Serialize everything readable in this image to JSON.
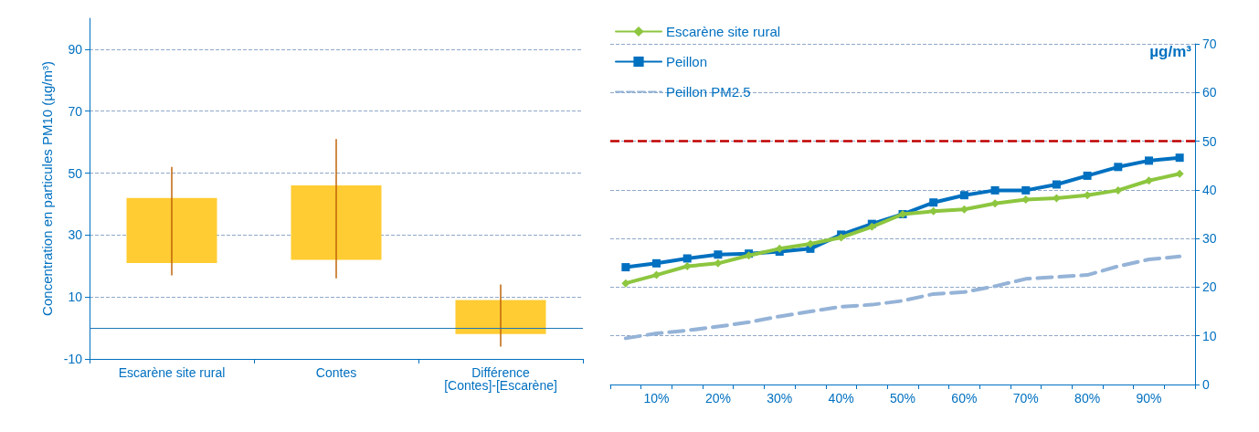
{
  "chart_data": [
    {
      "type": "bar",
      "ylabel": "Concentration en particules PM10 (µg/m³)",
      "categories": [
        "Escarène site rural",
        "Contes",
        "Différence\n[Contes]-[Escarène]"
      ],
      "base": [
        21,
        22,
        -2
      ],
      "values": [
        21,
        24,
        11
      ],
      "errors": [
        [
          17,
          52
        ],
        [
          16,
          61
        ],
        [
          -6,
          14
        ]
      ],
      "color": "#ffcc33",
      "ylim": [
        -10,
        100
      ],
      "yticks": [
        -10,
        10,
        30,
        50,
        70,
        90
      ],
      "grid": "y",
      "ref_lines": [
        {
          "axis": "y",
          "value": 0,
          "color": "#1f77b4"
        }
      ]
    },
    {
      "type": "line",
      "categories": [
        null,
        "10%",
        null,
        "20%",
        null,
        "30%",
        null,
        "40%",
        null,
        "50%",
        null,
        "60%",
        null,
        "70%",
        null,
        "80%",
        null,
        "90%",
        null
      ],
      "series": [
        {
          "name": "Escarène site rural",
          "color": "#8dc63f",
          "marker": "diamond",
          "line_style": "solid",
          "values": [
            20.8,
            22.5,
            24.3,
            24.9,
            26.5,
            27.9,
            28.9,
            30.2,
            32.4,
            35,
            35.6,
            36,
            37.2,
            38,
            38.3,
            38.9,
            39.9,
            41.9,
            43.3
          ]
        },
        {
          "name": "Peillon",
          "color": "#0070c0",
          "marker": "square",
          "line_style": "solid",
          "values": [
            24.1,
            24.9,
            25.9,
            26.7,
            26.9,
            27.3,
            27.9,
            30.8,
            33,
            35,
            37.4,
            38.9,
            39.9,
            39.9,
            41.1,
            42.9,
            44.7,
            46,
            46.6
          ]
        },
        {
          "name": "Peillon PM2.5",
          "color": "#95b3d7",
          "marker": "none",
          "line_style": "dashed",
          "values": [
            9.5,
            10.5,
            11.1,
            11.9,
            12.8,
            14,
            15,
            16,
            16.4,
            17.2,
            18.6,
            19,
            20.2,
            21.7,
            22.1,
            22.5,
            24.3,
            25.7,
            26.3
          ]
        }
      ],
      "ylim": [
        0,
        70
      ],
      "yticks": [
        0,
        10,
        20,
        30,
        40,
        50,
        60,
        70
      ],
      "grid": "y",
      "legend": "top left",
      "ref_lines": [
        {
          "axis": "y",
          "value": 50,
          "color": "#c00000",
          "line_style": "dashed"
        }
      ],
      "annotations": [
        "µg/m³"
      ]
    }
  ]
}
